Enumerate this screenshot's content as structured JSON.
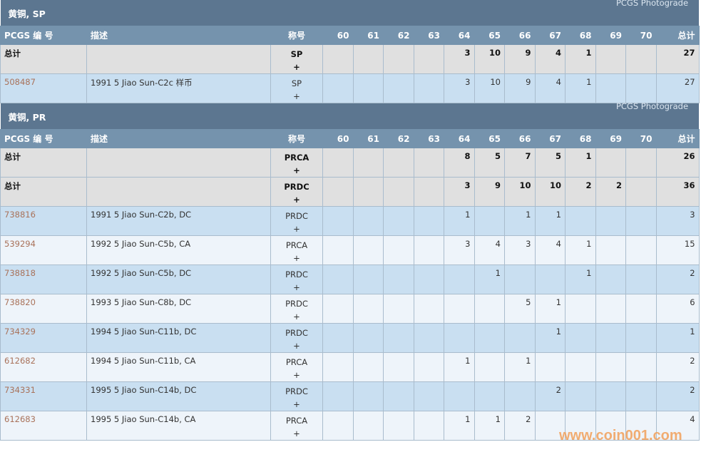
{
  "columns": {
    "pcgs": "PCGS 编 号",
    "desc": "描述",
    "designation": "称号",
    "grades": [
      "60",
      "61",
      "62",
      "63",
      "64",
      "65",
      "66",
      "67",
      "68",
      "69",
      "70"
    ],
    "total": "总计"
  },
  "plus": "+",
  "sections": [
    {
      "title": "黄铜, SP",
      "photograde": "PCGS Photograde",
      "rows": [
        {
          "total_row": true,
          "pcgs": "总计",
          "desc": "",
          "des": "SP",
          "vals": [
            "",
            "",
            "",
            "",
            "3",
            "10",
            "9",
            "4",
            "1",
            "",
            ""
          ],
          "total": "27"
        },
        {
          "pcgs": "508487",
          "desc": "1991 5 Jiao Sun-C2c 样币",
          "des": "SP",
          "vals": [
            "",
            "",
            "",
            "",
            "3",
            "10",
            "9",
            "4",
            "1",
            "",
            ""
          ],
          "total": "27"
        }
      ]
    },
    {
      "title": "黄铜, PR",
      "photograde": "PCGS Photograde",
      "rows": [
        {
          "total_row": true,
          "pcgs": "总计",
          "desc": "",
          "des": "PRCA",
          "vals": [
            "",
            "",
            "",
            "",
            "8",
            "5",
            "7",
            "5",
            "1",
            "",
            ""
          ],
          "total": "26"
        },
        {
          "total_row": true,
          "pcgs": "总计",
          "desc": "",
          "des": "PRDC",
          "vals": [
            "",
            "",
            "",
            "",
            "3",
            "9",
            "10",
            "10",
            "2",
            "2",
            ""
          ],
          "total": "36"
        },
        {
          "pcgs": "738816",
          "desc": "1991 5 Jiao Sun-C2b, DC",
          "des": "PRDC",
          "vals": [
            "",
            "",
            "",
            "",
            "1",
            "",
            "1",
            "1",
            "",
            "",
            ""
          ],
          "total": "3"
        },
        {
          "pcgs": "539294",
          "desc": "1992 5 Jiao Sun-C5b, CA",
          "des": "PRCA",
          "vals": [
            "",
            "",
            "",
            "",
            "3",
            "4",
            "3",
            "4",
            "1",
            "",
            ""
          ],
          "total": "15"
        },
        {
          "pcgs": "738818",
          "desc": "1992 5 Jiao Sun-C5b, DC",
          "des": "PRDC",
          "vals": [
            "",
            "",
            "",
            "",
            "",
            "1",
            "",
            "",
            "1",
            "",
            ""
          ],
          "total": "2"
        },
        {
          "pcgs": "738820",
          "desc": "1993 5 Jiao Sun-C8b, DC",
          "des": "PRDC",
          "vals": [
            "",
            "",
            "",
            "",
            "",
            "",
            "5",
            "1",
            "",
            "",
            ""
          ],
          "total": "6"
        },
        {
          "pcgs": "734329",
          "desc": "1994 5 Jiao Sun-C11b, DC",
          "des": "PRDC",
          "vals": [
            "",
            "",
            "",
            "",
            "",
            "",
            "",
            "1",
            "",
            "",
            ""
          ],
          "total": "1"
        },
        {
          "pcgs": "612682",
          "desc": "1994 5 Jiao Sun-C11b, CA",
          "des": "PRCA",
          "vals": [
            "",
            "",
            "",
            "",
            "1",
            "",
            "1",
            "",
            "",
            "",
            ""
          ],
          "total": "2"
        },
        {
          "pcgs": "734331",
          "desc": "1995 5 Jiao Sun-C14b, DC",
          "des": "PRDC",
          "vals": [
            "",
            "",
            "",
            "",
            "",
            "",
            "",
            "2",
            "",
            "",
            ""
          ],
          "total": "2"
        },
        {
          "pcgs": "612683",
          "desc": "1995 5 Jiao Sun-C14b, CA",
          "des": "PRCA",
          "vals": [
            "",
            "",
            "",
            "",
            "1",
            "1",
            "2",
            "",
            "",
            "",
            ""
          ],
          "total": "4"
        }
      ]
    }
  ],
  "watermark": "www.coin001.com"
}
